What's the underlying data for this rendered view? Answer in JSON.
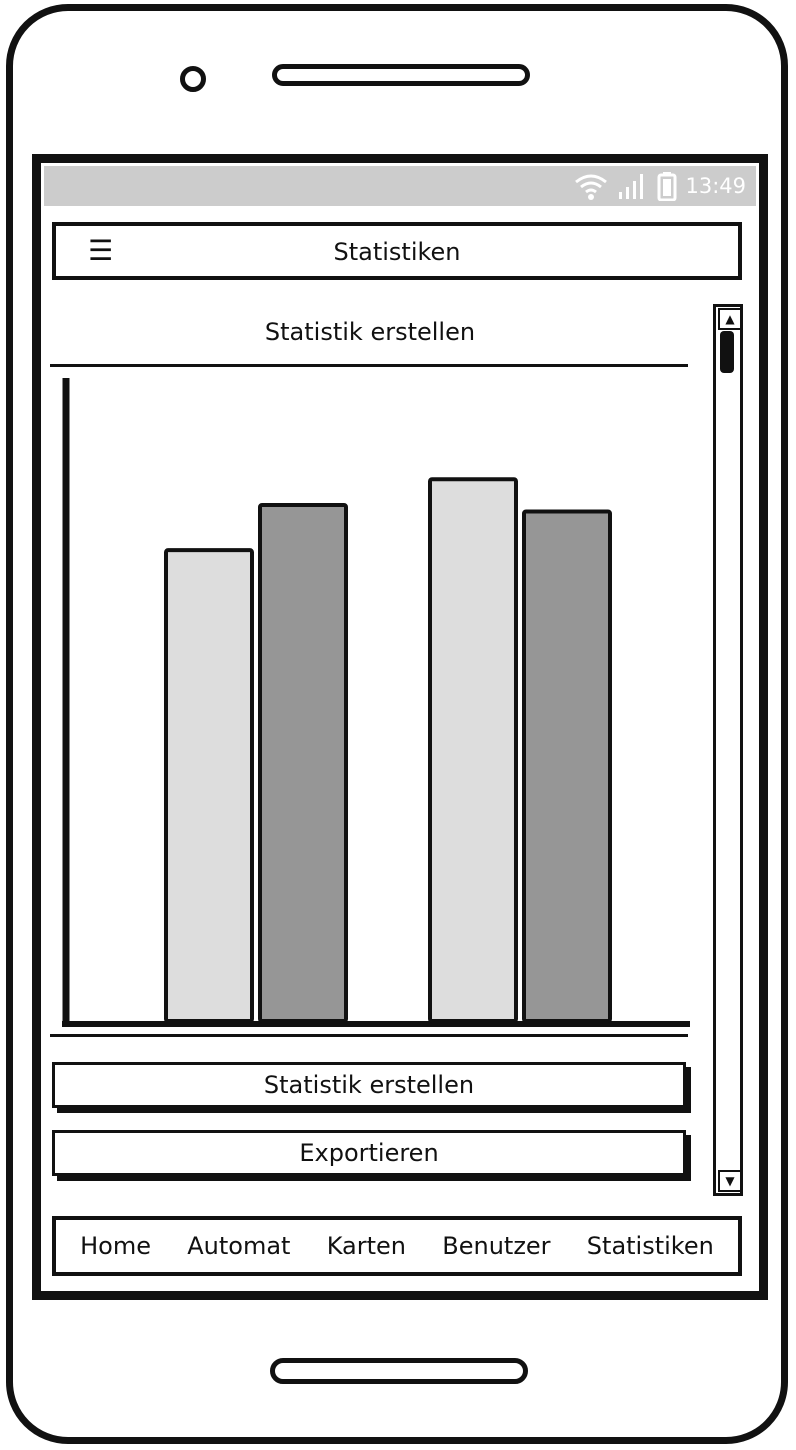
{
  "status_bar": {
    "time": "13:49",
    "icons": [
      "wifi-icon",
      "signal-icon",
      "battery-icon"
    ]
  },
  "header": {
    "menu_icon": "☰",
    "title": "Statistiken"
  },
  "content": {
    "section_title": "Statistik erstellen",
    "create_button": "Statistik erstellen",
    "export_button": "Exportieren"
  },
  "chart_data": {
    "type": "bar",
    "categories": [
      "",
      ""
    ],
    "series": [
      {
        "values": [
          73,
          84
        ],
        "color": "#dddddd"
      },
      {
        "values": [
          80,
          79
        ],
        "color": "#969696"
      }
    ],
    "ylim": [
      0,
      100
    ],
    "grid": false
  },
  "scrollbar": {
    "up_icon": "▲",
    "down_icon": "▼"
  },
  "bottom_nav": {
    "items": [
      {
        "label": "Home"
      },
      {
        "label": "Automat"
      },
      {
        "label": "Karten"
      },
      {
        "label": "Benutzer"
      },
      {
        "label": "Statistiken"
      }
    ]
  }
}
